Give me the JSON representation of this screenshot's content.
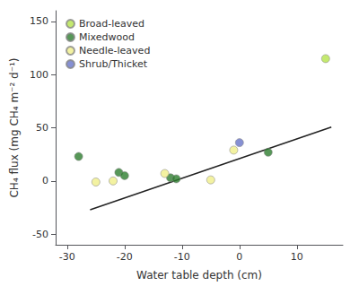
{
  "chart_data": {
    "type": "scatter",
    "xlabel": "Water table depth (cm)",
    "ylabel": "CH₄ flux (mg CH₄ m⁻² d⁻¹)",
    "xlim": [
      -32,
      18
    ],
    "ylim": [
      -60,
      160
    ],
    "xticks": [
      -30,
      -20,
      -10,
      0,
      10
    ],
    "yticks": [
      -50,
      0,
      50,
      100,
      150
    ],
    "grid": false,
    "legend": "upper left",
    "series": [
      {
        "name": "Broad-leaved",
        "color": "#b5e44b",
        "x": [
          15
        ],
        "values": [
          115
        ]
      },
      {
        "name": "Mixedwood",
        "color": "#2d7d2e",
        "x": [
          -28,
          -21,
          -20,
          -12,
          -11,
          5
        ],
        "values": [
          23,
          8,
          5,
          3,
          2,
          27
        ]
      },
      {
        "name": "Needle-leaved",
        "color": "#f0ef8a",
        "x": [
          -25,
          -22,
          -13,
          -5,
          -1
        ],
        "values": [
          -1,
          0,
          7,
          1,
          29
        ]
      },
      {
        "name": "Shrub/Thicket",
        "color": "#6874c8",
        "x": [
          0
        ],
        "values": [
          36
        ]
      },
      {
        "type": "line",
        "color": "#222222",
        "x": [
          -26,
          16
        ],
        "values": [
          -27.1,
          50.6
        ]
      }
    ]
  }
}
